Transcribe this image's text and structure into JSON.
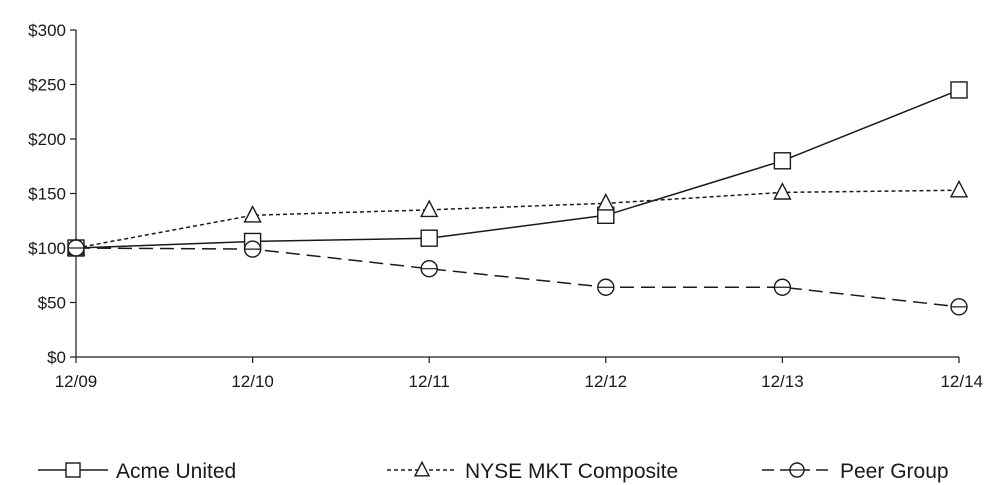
{
  "chart_data": {
    "type": "line",
    "title": "",
    "xlabel": "",
    "ylabel": "",
    "categories": [
      "12/09",
      "12/10",
      "12/11",
      "12/12",
      "12/13",
      "12/14"
    ],
    "y_ticks": [
      "$0",
      "$50",
      "$100",
      "$150",
      "$200",
      "$250",
      "$300"
    ],
    "ylim": [
      0,
      300
    ],
    "grid": false,
    "legend_position": "bottom",
    "series": [
      {
        "name": "Acme United",
        "marker": "square",
        "line_style": "solid",
        "color": "#1a1a1a",
        "values": [
          100,
          106,
          109,
          130,
          180,
          245
        ]
      },
      {
        "name": "NYSE MKT Composite",
        "marker": "triangle",
        "line_style": "dotted",
        "color": "#1a1a1a",
        "values": [
          100,
          130,
          135,
          141,
          151,
          153
        ]
      },
      {
        "name": "Peer Group",
        "marker": "circle",
        "line_style": "dashed",
        "color": "#1a1a1a",
        "values": [
          100,
          99,
          81,
          64,
          64,
          46
        ]
      }
    ]
  }
}
